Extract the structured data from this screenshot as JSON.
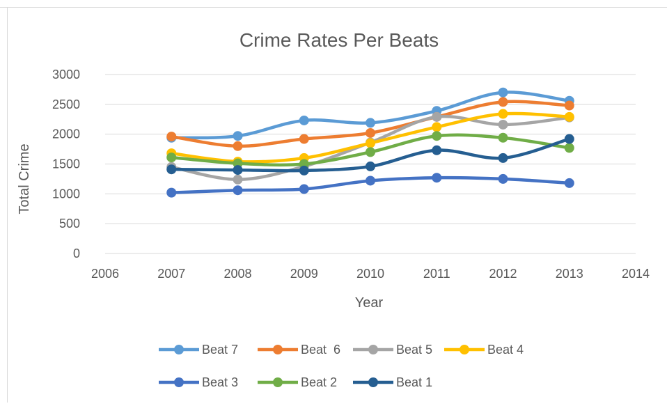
{
  "chart_data": {
    "type": "line",
    "smooth": true,
    "title": "Crime Rates Per Beats",
    "xlabel": "Year",
    "ylabel": "Total Crime",
    "xlim": [
      2006,
      2014
    ],
    "ylim": [
      0,
      3000
    ],
    "x_ticks": [
      2006,
      2007,
      2008,
      2009,
      2010,
      2011,
      2012,
      2013,
      2014
    ],
    "y_ticks": [
      0,
      500,
      1000,
      1500,
      2000,
      2500,
      3000
    ],
    "x_tick_labels": [
      "2006",
      "2007",
      "2008",
      "2009",
      "2010",
      "2011",
      "2012",
      "2013",
      "2014"
    ],
    "y_tick_labels": [
      "0",
      "500",
      "1000",
      "1500",
      "2000",
      "2500",
      "3000"
    ],
    "grid": "horizontal",
    "legend_position": "bottom",
    "x": [
      2007,
      2008,
      2009,
      2010,
      2011,
      2012,
      2013
    ],
    "series": [
      {
        "name": "Beat 7",
        "color": "#5B9BD5",
        "values": [
          1940,
          1970,
          2230,
          2190,
          2390,
          2700,
          2560
        ]
      },
      {
        "name": "Beat  6",
        "color": "#ED7D31",
        "values": [
          1960,
          1800,
          1920,
          2020,
          2290,
          2540,
          2480
        ]
      },
      {
        "name": "Beat 5",
        "color": "#A5A5A5",
        "values": [
          1450,
          1240,
          1460,
          1860,
          2290,
          2160,
          2280
        ]
      },
      {
        "name": "Beat 4",
        "color": "#FFC000",
        "values": [
          1680,
          1540,
          1600,
          1850,
          2120,
          2340,
          2290
        ]
      },
      {
        "name": "Beat 3",
        "color": "#4472C4",
        "values": [
          1020,
          1060,
          1080,
          1220,
          1270,
          1250,
          1180
        ]
      },
      {
        "name": "Beat 2",
        "color": "#70AD47",
        "values": [
          1610,
          1510,
          1500,
          1700,
          1970,
          1940,
          1770
        ]
      },
      {
        "name": "Beat 1",
        "color": "#255E91",
        "values": [
          1410,
          1400,
          1390,
          1460,
          1730,
          1600,
          1920
        ]
      }
    ]
  }
}
